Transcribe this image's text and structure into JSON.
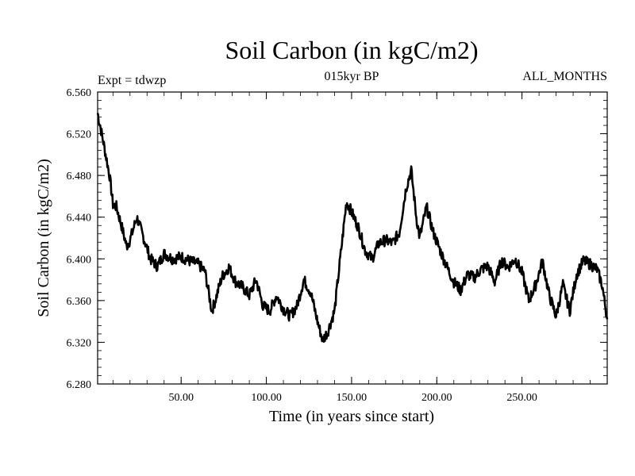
{
  "chart_data": {
    "type": "line",
    "title": "Soil Carbon (in kgC/m2)",
    "subtitle_left": "Expt = tdwzp",
    "subtitle_center": "015kyr BP",
    "subtitle_right": "ALL_MONTHS",
    "xlabel": "Time (in years since start)",
    "ylabel": "Soil Carbon (in kgC/m2)",
    "xlim": [
      1,
      300
    ],
    "ylim": [
      6.28,
      6.56
    ],
    "x_ticks": [
      "50.00",
      "100.00",
      "150.00",
      "200.00",
      "250.00"
    ],
    "x_tick_values": [
      50,
      100,
      150,
      200,
      250
    ],
    "y_ticks": [
      "6.280",
      "6.320",
      "6.360",
      "6.400",
      "6.440",
      "6.480",
      "6.520",
      "6.560"
    ],
    "y_tick_values": [
      6.28,
      6.32,
      6.36,
      6.4,
      6.44,
      6.48,
      6.52,
      6.56
    ],
    "grid": false,
    "series": [
      {
        "color": "#000000",
        "x": [
          1,
          4,
          8,
          10,
          12,
          15,
          18,
          20,
          24,
          28,
          32,
          36,
          40,
          45,
          50,
          55,
          60,
          64,
          68,
          70,
          74,
          78,
          82,
          86,
          90,
          94,
          98,
          102,
          106,
          110,
          114,
          118,
          122,
          126,
          130,
          133,
          136,
          140,
          144,
          147,
          150,
          154,
          158,
          162,
          166,
          170,
          174,
          178,
          182,
          185,
          188,
          190,
          194,
          198,
          202,
          206,
          210,
          214,
          218,
          222,
          226,
          230,
          234,
          238,
          242,
          246,
          250,
          254,
          258,
          262,
          266,
          270,
          274,
          278,
          282,
          286,
          290,
          294,
          297,
          300
        ],
        "values": [
          6.54,
          6.515,
          6.48,
          6.452,
          6.45,
          6.432,
          6.412,
          6.418,
          6.44,
          6.42,
          6.4,
          6.393,
          6.405,
          6.4,
          6.402,
          6.398,
          6.395,
          6.388,
          6.35,
          6.36,
          6.383,
          6.392,
          6.378,
          6.373,
          6.365,
          6.38,
          6.355,
          6.35,
          6.365,
          6.352,
          6.345,
          6.355,
          6.38,
          6.368,
          6.34,
          6.322,
          6.33,
          6.35,
          6.41,
          6.455,
          6.445,
          6.43,
          6.408,
          6.4,
          6.415,
          6.418,
          6.415,
          6.425,
          6.468,
          6.485,
          6.44,
          6.42,
          6.45,
          6.425,
          6.408,
          6.392,
          6.378,
          6.37,
          6.385,
          6.382,
          6.39,
          6.393,
          6.378,
          6.398,
          6.392,
          6.4,
          6.387,
          6.36,
          6.375,
          6.398,
          6.365,
          6.345,
          6.375,
          6.35,
          6.385,
          6.398,
          6.395,
          6.39,
          6.375,
          6.342
        ]
      }
    ]
  }
}
